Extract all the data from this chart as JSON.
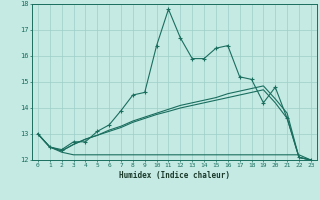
{
  "xlabel": "Humidex (Indice chaleur)",
  "bg_color": "#c5eae4",
  "grid_color": "#9dcfc8",
  "line_color": "#1a6e5e",
  "line1_x": [
    0,
    1,
    2,
    3,
    4,
    5,
    6,
    7,
    8,
    9,
    10,
    11,
    12,
    13,
    14,
    15,
    16,
    17,
    18,
    19,
    20,
    21,
    22,
    23
  ],
  "line1_y": [
    13.0,
    12.5,
    12.4,
    12.7,
    12.7,
    13.1,
    13.35,
    13.9,
    14.5,
    14.6,
    16.4,
    17.8,
    16.7,
    15.9,
    15.9,
    16.3,
    16.4,
    15.2,
    15.1,
    14.2,
    14.8,
    13.6,
    12.1,
    12.0
  ],
  "line2_x": [
    0,
    1,
    2,
    3,
    4,
    5,
    6,
    7,
    8,
    9,
    10,
    11,
    12,
    13,
    14,
    15,
    20,
    21,
    22,
    23
  ],
  "line2_y": [
    13.0,
    12.5,
    12.3,
    12.2,
    12.2,
    12.2,
    12.2,
    12.2,
    12.2,
    12.2,
    12.2,
    12.2,
    12.2,
    12.2,
    12.2,
    12.2,
    12.2,
    12.2,
    12.2,
    12.0
  ],
  "line3_x": [
    0,
    1,
    2,
    3,
    4,
    5,
    6,
    7,
    8,
    9,
    10,
    11,
    12,
    13,
    14,
    15,
    16,
    17,
    18,
    19,
    20,
    21,
    22,
    23
  ],
  "line3_y": [
    13.0,
    12.5,
    12.35,
    12.6,
    12.8,
    12.95,
    13.1,
    13.25,
    13.45,
    13.6,
    13.75,
    13.87,
    14.0,
    14.1,
    14.2,
    14.3,
    14.4,
    14.5,
    14.6,
    14.7,
    14.2,
    13.6,
    12.1,
    12.0
  ],
  "line4_x": [
    0,
    1,
    2,
    3,
    4,
    5,
    6,
    7,
    8,
    9,
    10,
    11,
    12,
    13,
    14,
    15,
    16,
    17,
    18,
    19,
    20,
    21,
    22,
    23
  ],
  "line4_y": [
    13.0,
    12.5,
    12.35,
    12.6,
    12.8,
    12.95,
    13.15,
    13.3,
    13.5,
    13.65,
    13.8,
    13.95,
    14.1,
    14.2,
    14.3,
    14.4,
    14.55,
    14.65,
    14.75,
    14.85,
    14.35,
    13.8,
    12.1,
    12.0
  ],
  "ylim": [
    12.0,
    18.0
  ],
  "xlim": [
    -0.5,
    23.5
  ],
  "yticks": [
    12,
    13,
    14,
    15,
    16,
    17,
    18
  ],
  "xticks": [
    0,
    1,
    2,
    3,
    4,
    5,
    6,
    7,
    8,
    9,
    10,
    11,
    12,
    13,
    14,
    15,
    16,
    17,
    18,
    19,
    20,
    21,
    22,
    23
  ]
}
